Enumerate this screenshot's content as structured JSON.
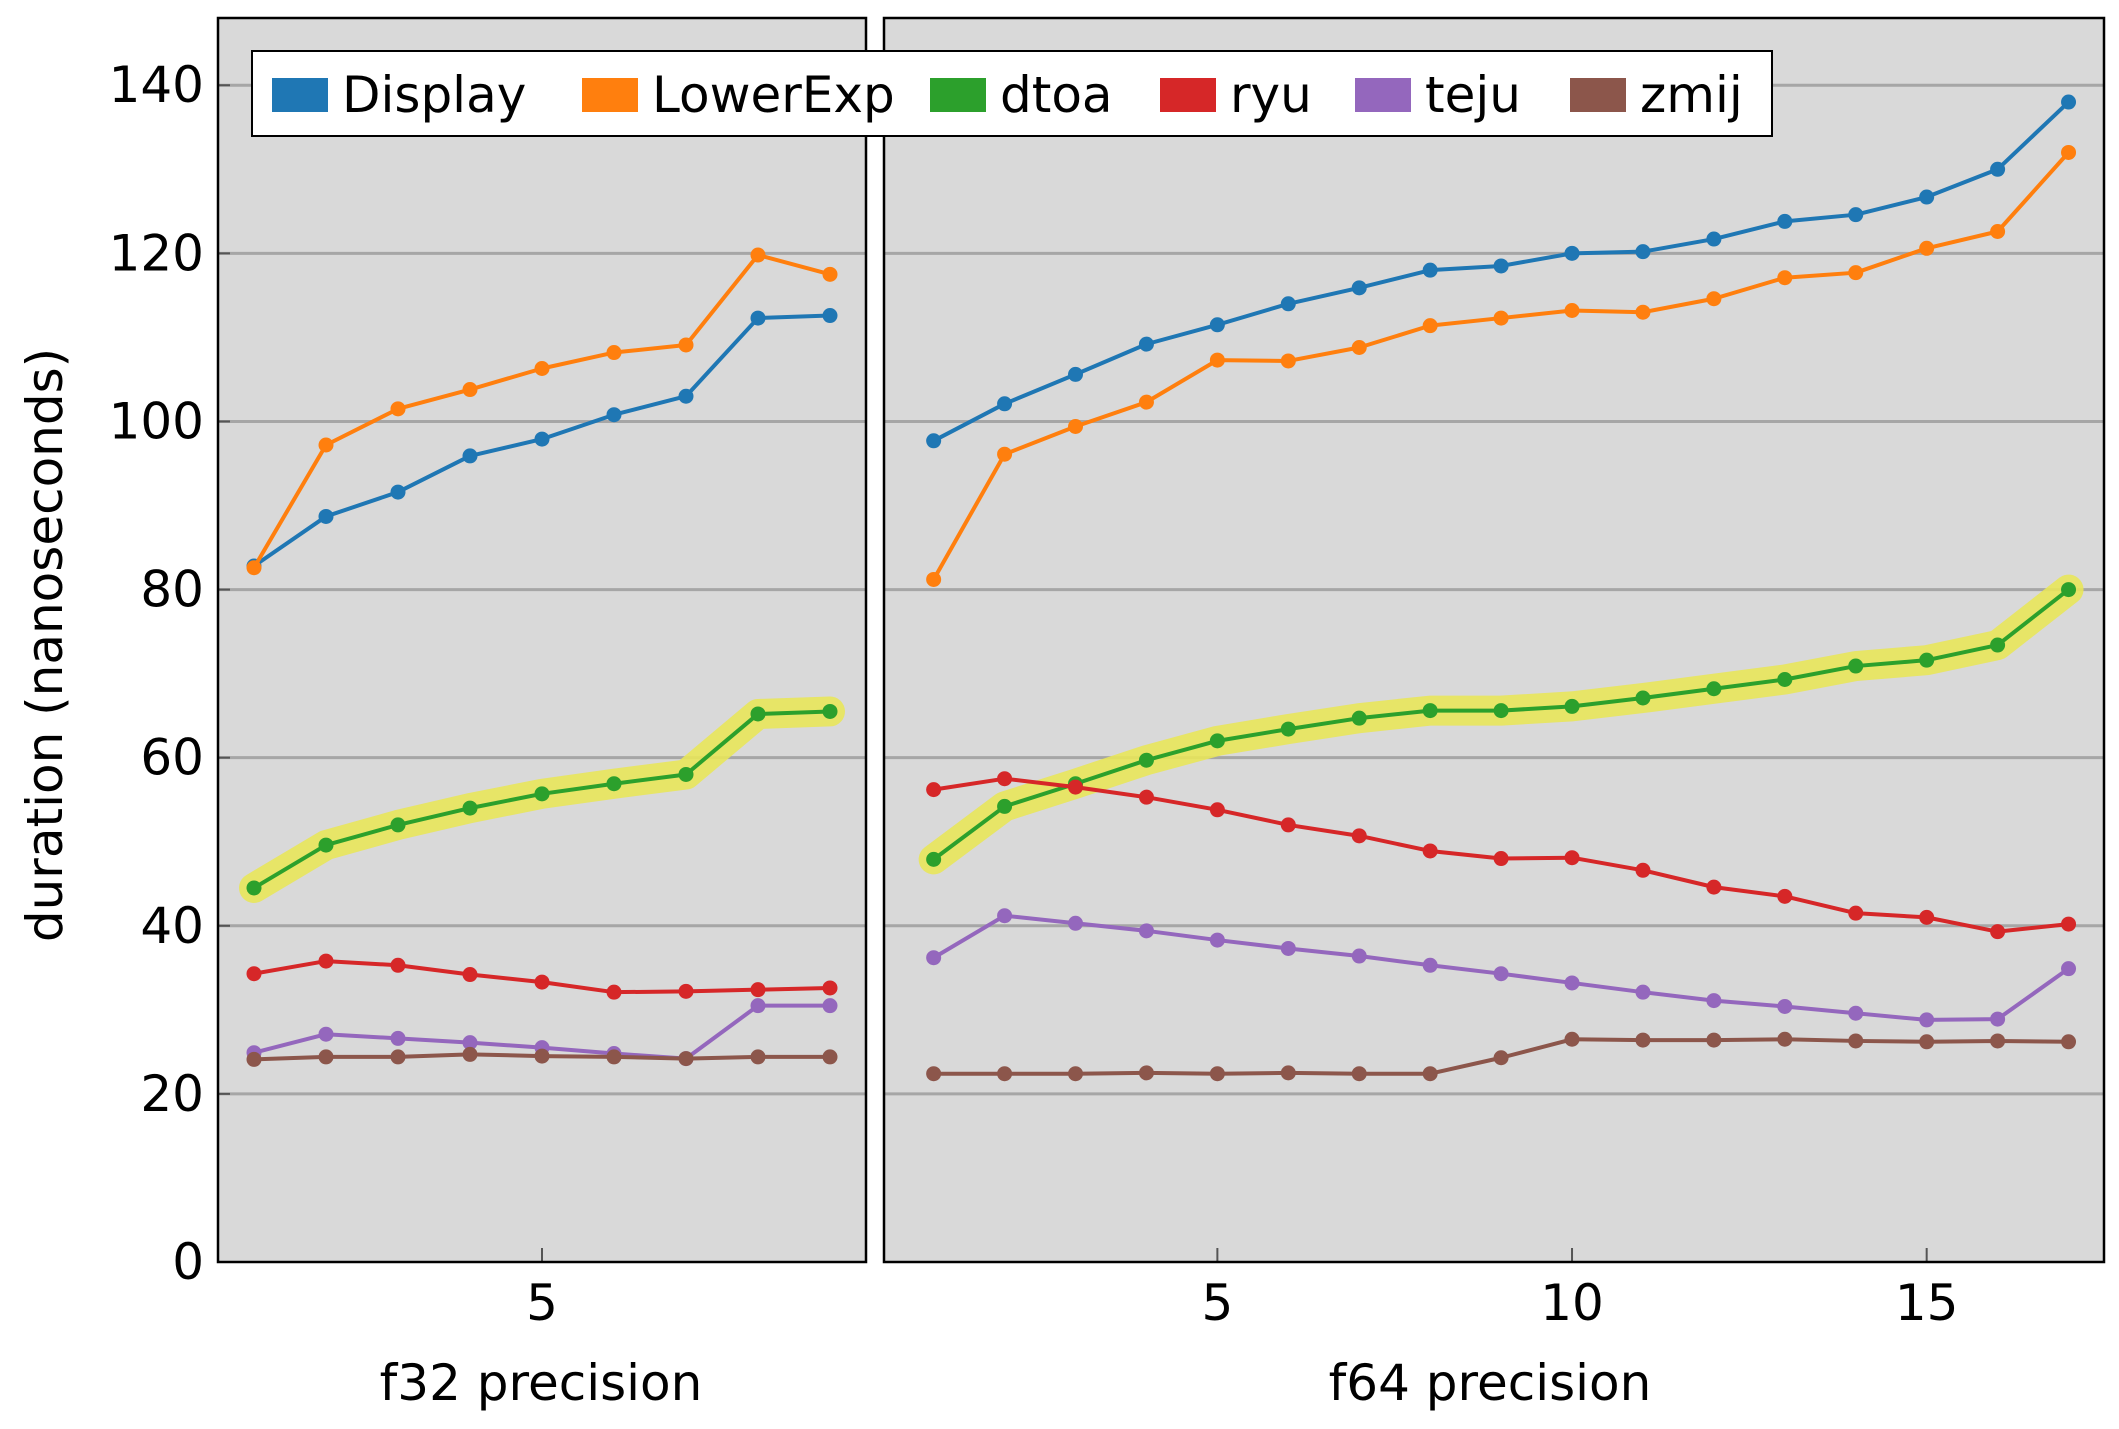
{
  "chart_data": [
    {
      "type": "line",
      "ylabel": "duration  (nanoseconds)",
      "xlabel": "f32 precision",
      "ylim": [
        0,
        148
      ],
      "xlim": [
        0.5,
        9.5
      ],
      "xticks": [
        5
      ],
      "yticks": [
        0,
        20,
        40,
        60,
        80,
        100,
        120,
        140
      ],
      "grid": "horizontal",
      "highlight_series": "dtoa",
      "series": [
        {
          "name": "Display",
          "color": "#1f77b4",
          "x": [
            1,
            2,
            3,
            4,
            5,
            6,
            7,
            8,
            9
          ],
          "values": [
            82.8,
            88.7,
            91.6,
            95.9,
            97.9,
            100.8,
            103.0,
            112.3,
            112.6
          ]
        },
        {
          "name": "LowerExp",
          "color": "#ff7f0e",
          "x": [
            1,
            2,
            3,
            4,
            5,
            6,
            7,
            8,
            9
          ],
          "values": [
            82.6,
            97.2,
            101.5,
            103.8,
            106.3,
            108.2,
            109.1,
            119.8,
            117.5
          ]
        },
        {
          "name": "dtoa",
          "color": "#2ca02c",
          "x": [
            1,
            2,
            3,
            4,
            5,
            6,
            7,
            8,
            9
          ],
          "values": [
            44.5,
            49.6,
            52.0,
            54.0,
            55.7,
            56.9,
            58.0,
            65.2,
            65.5
          ]
        },
        {
          "name": "ryu",
          "color": "#d62728",
          "x": [
            1,
            2,
            3,
            4,
            5,
            6,
            7,
            8,
            9
          ],
          "values": [
            34.3,
            35.8,
            35.3,
            34.2,
            33.3,
            32.1,
            32.2,
            32.4,
            32.6
          ]
        },
        {
          "name": "teju",
          "color": "#9467bd",
          "x": [
            1,
            2,
            3,
            4,
            5,
            6,
            7,
            8,
            9
          ],
          "values": [
            24.9,
            27.1,
            26.6,
            26.1,
            25.5,
            24.8,
            24.2,
            30.5,
            30.5
          ]
        },
        {
          "name": "zmij",
          "color": "#8c564b",
          "x": [
            1,
            2,
            3,
            4,
            5,
            6,
            7,
            8,
            9
          ],
          "values": [
            24.1,
            24.4,
            24.4,
            24.7,
            24.5,
            24.4,
            24.2,
            24.4,
            24.4
          ]
        }
      ]
    },
    {
      "type": "line",
      "xlabel": "f64 precision",
      "ylim": [
        0,
        148
      ],
      "xlim": [
        0.3,
        17.5
      ],
      "xticks": [
        5,
        10,
        15
      ],
      "grid": "horizontal",
      "highlight_series": "dtoa",
      "series": [
        {
          "name": "Display",
          "color": "#1f77b4",
          "x": [
            1,
            2,
            3,
            4,
            5,
            6,
            7,
            8,
            9,
            10,
            11,
            12,
            13,
            14,
            15,
            16,
            17
          ],
          "values": [
            97.7,
            102.1,
            105.6,
            109.2,
            111.5,
            114.0,
            115.9,
            118.0,
            118.5,
            120.0,
            120.2,
            121.7,
            123.8,
            124.6,
            126.7,
            130.0,
            138.0
          ]
        },
        {
          "name": "LowerExp",
          "color": "#ff7f0e",
          "x": [
            1,
            2,
            3,
            4,
            5,
            6,
            7,
            8,
            9,
            10,
            11,
            12,
            13,
            14,
            15,
            16,
            17
          ],
          "values": [
            81.2,
            96.1,
            99.4,
            102.3,
            107.3,
            107.2,
            108.8,
            111.4,
            112.3,
            113.2,
            113.0,
            114.6,
            117.1,
            117.7,
            120.6,
            122.6,
            132.0
          ]
        },
        {
          "name": "dtoa",
          "color": "#2ca02c",
          "x": [
            1,
            2,
            3,
            4,
            5,
            6,
            7,
            8,
            9,
            10,
            11,
            12,
            13,
            14,
            15,
            16,
            17
          ],
          "values": [
            47.9,
            54.2,
            56.9,
            59.7,
            62.0,
            63.4,
            64.7,
            65.6,
            65.6,
            66.1,
            67.1,
            68.2,
            69.3,
            70.9,
            71.6,
            73.4,
            80.0
          ]
        },
        {
          "name": "ryu",
          "color": "#d62728",
          "x": [
            1,
            2,
            3,
            4,
            5,
            6,
            7,
            8,
            9,
            10,
            11,
            12,
            13,
            14,
            15,
            16,
            17
          ],
          "values": [
            56.2,
            57.5,
            56.5,
            55.3,
            53.8,
            52.0,
            50.7,
            48.9,
            48.0,
            48.1,
            46.6,
            44.6,
            43.5,
            41.5,
            41.0,
            39.3,
            40.2
          ]
        },
        {
          "name": "teju",
          "color": "#9467bd",
          "x": [
            1,
            2,
            3,
            4,
            5,
            6,
            7,
            8,
            9,
            10,
            11,
            12,
            13,
            14,
            15,
            16,
            17
          ],
          "values": [
            36.2,
            41.2,
            40.3,
            39.4,
            38.3,
            37.3,
            36.4,
            35.3,
            34.3,
            33.2,
            32.1,
            31.1,
            30.4,
            29.6,
            28.8,
            28.9,
            34.9
          ]
        },
        {
          "name": "zmij",
          "color": "#8c564b",
          "x": [
            1,
            2,
            3,
            4,
            5,
            6,
            7,
            8,
            9,
            10,
            11,
            12,
            13,
            14,
            15,
            16,
            17
          ],
          "values": [
            22.4,
            22.4,
            22.4,
            22.5,
            22.4,
            22.5,
            22.4,
            22.4,
            24.3,
            26.5,
            26.4,
            26.4,
            26.5,
            26.3,
            26.2,
            26.3,
            26.2
          ]
        }
      ]
    }
  ],
  "legend": {
    "placement": "top",
    "items": [
      {
        "label": "Display",
        "color": "#1f77b4"
      },
      {
        "label": "LowerExp",
        "color": "#ff7f0e"
      },
      {
        "label": "dtoa",
        "color": "#2ca02c"
      },
      {
        "label": "ryu",
        "color": "#d62728"
      },
      {
        "label": "teju",
        "color": "#9467bd"
      },
      {
        "label": "zmij",
        "color": "#8c564b"
      }
    ]
  },
  "colors": {
    "panel_bg": "#d9d9d9",
    "grid": "#a6a6a6",
    "highlight": "#e8e55a"
  }
}
